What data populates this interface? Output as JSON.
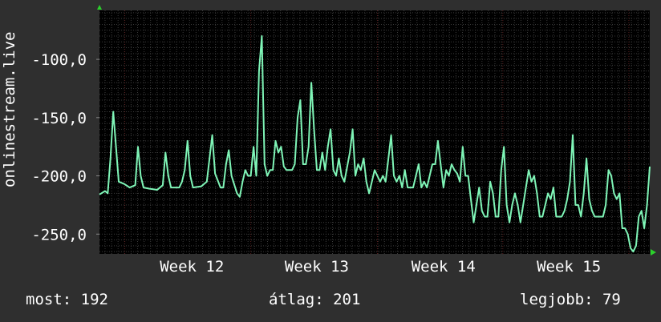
{
  "y_axis_label": "onlinestream.live",
  "footer": {
    "current": "most: 192",
    "average": "átlag: 201",
    "best": "legjobb: 79"
  },
  "colors": {
    "background": "#2f2f2f",
    "plot_background": "#000000",
    "grid": "#3a3a3a",
    "week_grid": "#5a1f1f",
    "line": "#7ff5b7",
    "axis_arrow": "#2bd12b"
  },
  "chart_data": {
    "type": "line",
    "ylabel": "onlinestream.live",
    "yticks": [
      -100,
      -150,
      -200,
      -250
    ],
    "ytick_labels": [
      "-100,0",
      "-150,0",
      "-200,0",
      "-250,0"
    ],
    "ylim": [
      -267,
      -58
    ],
    "xlim": [
      0,
      100
    ],
    "xtick_positions": [
      16.8,
      39.5,
      62.5,
      85.3
    ],
    "xtick_labels": [
      "Week 12",
      "Week 13",
      "Week 14",
      "Week 15"
    ],
    "week_boundaries": [
      4.6,
      27.5,
      50.5,
      73.3,
      96.2
    ],
    "grid": true,
    "series": [
      {
        "values": [
          [
            0.0,
            -216
          ],
          [
            1.0,
            -213
          ],
          [
            1.5,
            -215
          ],
          [
            2.0,
            -185
          ],
          [
            2.5,
            -145
          ],
          [
            3.0,
            -175
          ],
          [
            3.5,
            -205
          ],
          [
            4.5,
            -207
          ],
          [
            5.5,
            -210
          ],
          [
            6.5,
            -208
          ],
          [
            7.0,
            -175
          ],
          [
            7.5,
            -200
          ],
          [
            8.0,
            -210
          ],
          [
            9.0,
            -211
          ],
          [
            10.5,
            -212
          ],
          [
            11.5,
            -208
          ],
          [
            12.0,
            -180
          ],
          [
            12.5,
            -200
          ],
          [
            13.0,
            -210
          ],
          [
            14.5,
            -210
          ],
          [
            15.0,
            -205
          ],
          [
            15.5,
            -195
          ],
          [
            16.0,
            -170
          ],
          [
            16.5,
            -200
          ],
          [
            17.0,
            -210
          ],
          [
            18.5,
            -209
          ],
          [
            19.5,
            -205
          ],
          [
            20.0,
            -185
          ],
          [
            20.5,
            -165
          ],
          [
            21.0,
            -198
          ],
          [
            22.0,
            -210
          ],
          [
            22.5,
            -210
          ],
          [
            23.0,
            -190
          ],
          [
            23.5,
            -178
          ],
          [
            24.0,
            -200
          ],
          [
            25.0,
            -215
          ],
          [
            25.5,
            -218
          ],
          [
            26.0,
            -205
          ],
          [
            26.5,
            -195
          ],
          [
            27.0,
            -200
          ],
          [
            27.5,
            -200
          ],
          [
            28.0,
            -175
          ],
          [
            28.5,
            -200
          ],
          [
            29.0,
            -110
          ],
          [
            29.5,
            -80
          ],
          [
            30.0,
            -190
          ],
          [
            30.5,
            -200
          ],
          [
            31.0,
            -195
          ],
          [
            31.5,
            -195
          ],
          [
            32.0,
            -170
          ],
          [
            32.5,
            -180
          ],
          [
            33.0,
            -175
          ],
          [
            33.5,
            -192
          ],
          [
            34.0,
            -195
          ],
          [
            35.0,
            -195
          ],
          [
            35.5,
            -190
          ],
          [
            36.0,
            -150
          ],
          [
            36.5,
            -135
          ],
          [
            37.0,
            -190
          ],
          [
            37.5,
            -190
          ],
          [
            38.0,
            -175
          ],
          [
            38.5,
            -120
          ],
          [
            39.0,
            -160
          ],
          [
            39.5,
            -195
          ],
          [
            40.0,
            -195
          ],
          [
            40.5,
            -180
          ],
          [
            41.0,
            -195
          ],
          [
            41.5,
            -175
          ],
          [
            42.0,
            -160
          ],
          [
            42.5,
            -195
          ],
          [
            43.0,
            -200
          ],
          [
            43.5,
            -185
          ],
          [
            44.0,
            -200
          ],
          [
            44.5,
            -205
          ],
          [
            45.5,
            -180
          ],
          [
            46.0,
            -160
          ],
          [
            46.5,
            -200
          ],
          [
            47.0,
            -190
          ],
          [
            47.5,
            -195
          ],
          [
            48.0,
            -185
          ],
          [
            48.5,
            -205
          ],
          [
            49.0,
            -215
          ],
          [
            49.5,
            -205
          ],
          [
            50.0,
            -195
          ],
          [
            50.5,
            -200
          ],
          [
            51.0,
            -205
          ],
          [
            51.5,
            -200
          ],
          [
            52.0,
            -205
          ],
          [
            52.5,
            -185
          ],
          [
            53.0,
            -165
          ],
          [
            53.5,
            -200
          ],
          [
            54.0,
            -205
          ],
          [
            54.5,
            -200
          ],
          [
            55.0,
            -210
          ],
          [
            55.5,
            -195
          ],
          [
            56.0,
            -210
          ],
          [
            57.0,
            -210
          ],
          [
            57.5,
            -200
          ],
          [
            58.0,
            -190
          ],
          [
            58.5,
            -210
          ],
          [
            59.0,
            -205
          ],
          [
            59.5,
            -210
          ],
          [
            60.0,
            -200
          ],
          [
            60.5,
            -190
          ],
          [
            61.0,
            -190
          ],
          [
            61.5,
            -170
          ],
          [
            62.0,
            -190
          ],
          [
            62.5,
            -210
          ],
          [
            63.0,
            -195
          ],
          [
            63.5,
            -200
          ],
          [
            64.0,
            -190
          ],
          [
            64.5,
            -195
          ],
          [
            65.0,
            -198
          ],
          [
            65.5,
            -205
          ],
          [
            66.0,
            -175
          ],
          [
            66.5,
            -200
          ],
          [
            67.0,
            -200
          ],
          [
            67.5,
            -220
          ],
          [
            68.0,
            -240
          ],
          [
            68.5,
            -225
          ],
          [
            69.0,
            -210
          ],
          [
            69.5,
            -230
          ],
          [
            70.0,
            -235
          ],
          [
            70.5,
            -235
          ],
          [
            71.0,
            -205
          ],
          [
            71.5,
            -215
          ],
          [
            72.0,
            -235
          ],
          [
            72.5,
            -235
          ],
          [
            73.0,
            -195
          ],
          [
            73.5,
            -175
          ],
          [
            74.0,
            -225
          ],
          [
            74.5,
            -240
          ],
          [
            75.0,
            -225
          ],
          [
            75.5,
            -215
          ],
          [
            76.0,
            -225
          ],
          [
            76.5,
            -240
          ],
          [
            77.0,
            -225
          ],
          [
            77.5,
            -210
          ],
          [
            78.0,
            -195
          ],
          [
            78.5,
            -205
          ],
          [
            79.0,
            -200
          ],
          [
            79.5,
            -215
          ],
          [
            80.0,
            -235
          ],
          [
            80.5,
            -235
          ],
          [
            81.0,
            -225
          ],
          [
            81.5,
            -215
          ],
          [
            82.0,
            -220
          ],
          [
            82.5,
            -210
          ],
          [
            83.0,
            -235
          ],
          [
            84.0,
            -235
          ],
          [
            84.5,
            -230
          ],
          [
            85.0,
            -220
          ],
          [
            85.5,
            -205
          ],
          [
            86.0,
            -165
          ],
          [
            86.5,
            -225
          ],
          [
            87.0,
            -225
          ],
          [
            87.5,
            -235
          ],
          [
            88.0,
            -215
          ],
          [
            88.5,
            -185
          ],
          [
            89.0,
            -220
          ],
          [
            89.5,
            -230
          ],
          [
            90.0,
            -235
          ],
          [
            91.5,
            -235
          ],
          [
            92.0,
            -225
          ],
          [
            92.5,
            -195
          ],
          [
            93.0,
            -200
          ],
          [
            93.5,
            -215
          ],
          [
            94.0,
            -220
          ],
          [
            94.5,
            -215
          ],
          [
            95.0,
            -245
          ],
          [
            95.5,
            -245
          ],
          [
            96.0,
            -250
          ],
          [
            96.5,
            -262
          ],
          [
            97.0,
            -265
          ],
          [
            97.5,
            -260
          ],
          [
            98.0,
            -235
          ],
          [
            98.5,
            -230
          ],
          [
            99.0,
            -245
          ],
          [
            99.5,
            -225
          ],
          [
            100.0,
            -192
          ]
        ]
      }
    ]
  }
}
